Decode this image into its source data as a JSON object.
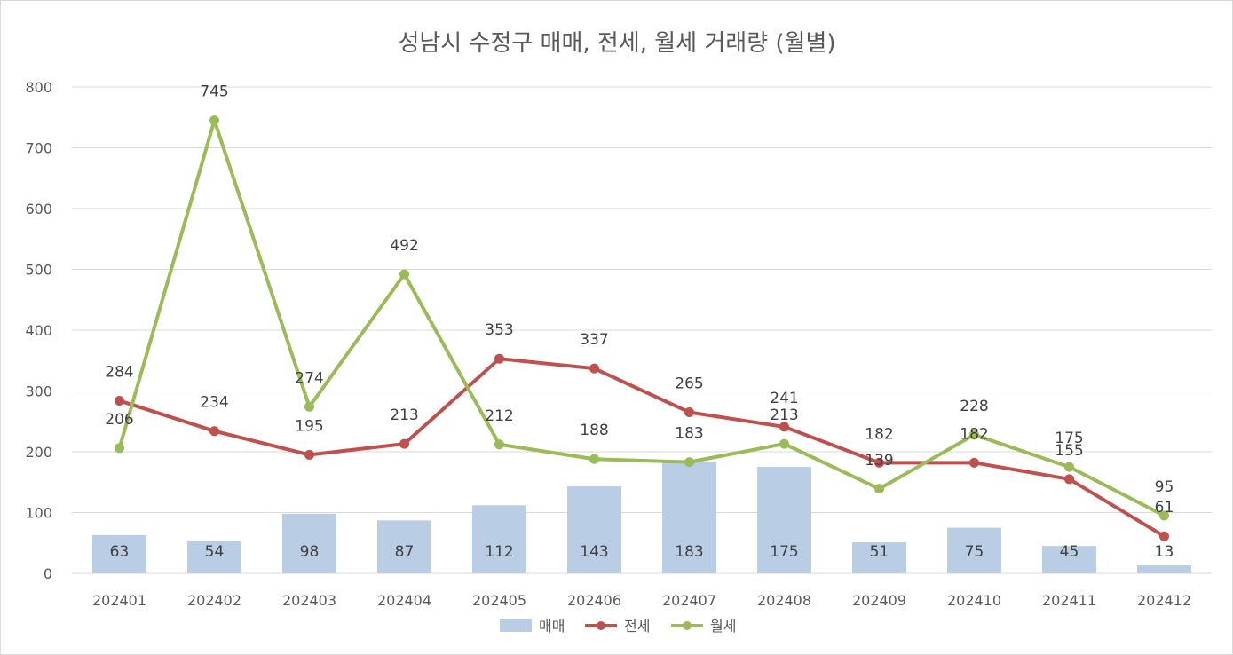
{
  "chart_data": {
    "type": "bar+line",
    "title": "성남시 수정구 매매, 전세, 월세 거래량 (월별)",
    "categories": [
      "202401",
      "202402",
      "202403",
      "202404",
      "202405",
      "202406",
      "202407",
      "202408",
      "202409",
      "202410",
      "202411",
      "202412"
    ],
    "series": [
      {
        "name": "매매",
        "kind": "bar",
        "color": "#b9cde5",
        "values": [
          63,
          54,
          98,
          87,
          112,
          143,
          183,
          175,
          51,
          75,
          45,
          13
        ]
      },
      {
        "name": "전세",
        "kind": "line",
        "color": "#c0504d",
        "values": [
          284,
          234,
          195,
          213,
          353,
          337,
          265,
          241,
          182,
          182,
          155,
          61
        ]
      },
      {
        "name": "월세",
        "kind": "line",
        "color": "#9bbb59",
        "values": [
          206,
          745,
          274,
          492,
          212,
          188,
          183,
          213,
          139,
          228,
          175,
          95
        ]
      }
    ],
    "y_ticks": [
      "0",
      "100",
      "200",
      "300",
      "400",
      "500",
      "600",
      "700",
      "800"
    ],
    "ylim": [
      0,
      800
    ],
    "grid": true,
    "legend": "bottom"
  }
}
